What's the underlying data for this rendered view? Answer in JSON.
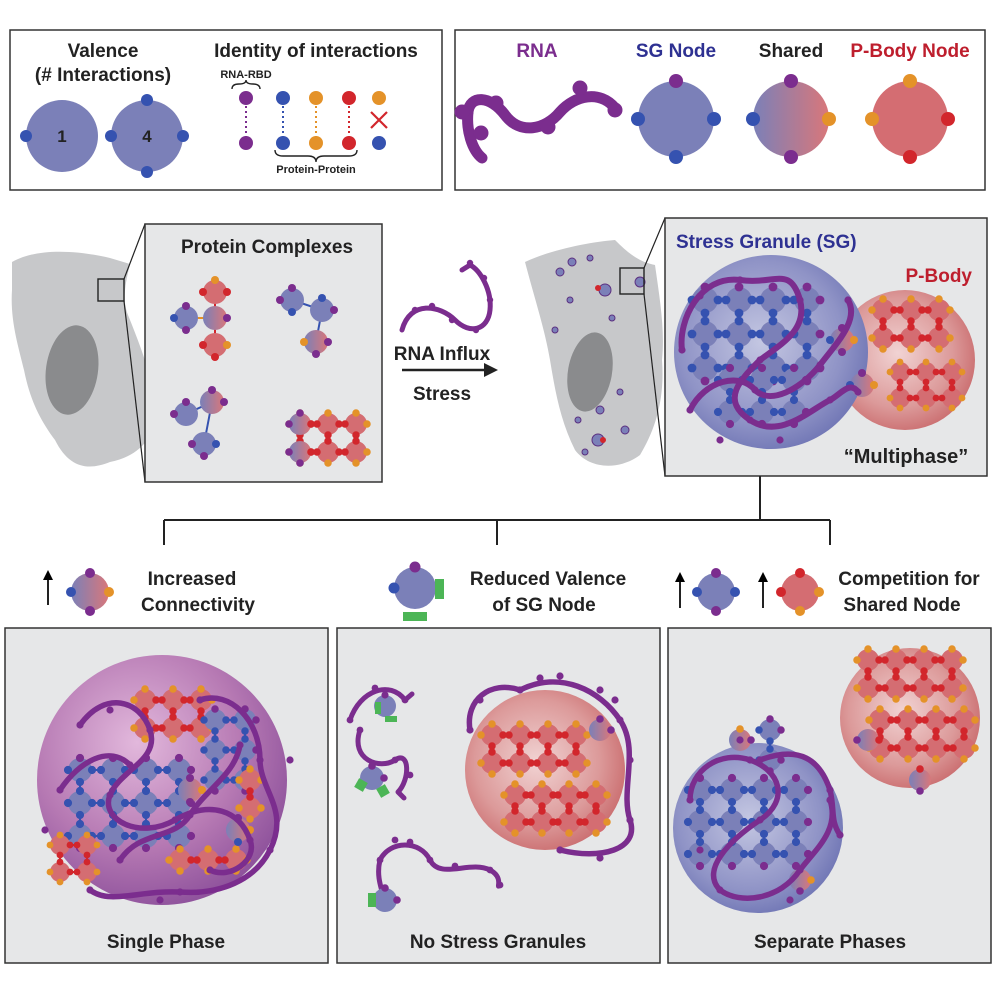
{
  "legend_left": {
    "valence_title_line1": "Valence",
    "valence_title_line2": "(# Interactions)",
    "valence_one": "1",
    "valence_four": "4",
    "identity_title": "Identity of interactions",
    "rna_rbd": "RNA-RBD",
    "protein_protein": "Protein-Protein"
  },
  "legend_right": {
    "rna": "RNA",
    "sg_node": "SG Node",
    "shared": "Shared",
    "pbody_node": "P-Body Node"
  },
  "middle": {
    "protein_complexes": "Protein Complexes",
    "rna_influx": "RNA Influx",
    "stress": "Stress",
    "stress_granule": "Stress Granule (SG)",
    "p_body": "P-Body",
    "multiphase": "“Multiphase”"
  },
  "conditions": {
    "c1_line1": "Increased",
    "c1_line2": "Connectivity",
    "c2_line1": "Reduced Valence",
    "c2_line2": "of SG Node",
    "c3_line1": "Competition for",
    "c3_line2": "Shared Node"
  },
  "panels": {
    "single_phase": "Single Phase",
    "no_stress_granules": "No Stress Granules",
    "separate_phases": "Separate Phases"
  },
  "colors": {
    "rna": "#7b2d8e",
    "sg_node": "#7b80b8",
    "pbody_node": "#d46d72",
    "blue_site": "#3552b0",
    "orange_site": "#e49229",
    "red_site": "#d2262c",
    "green_mod": "#4cb556",
    "panel_bg": "#e6e7e8"
  }
}
